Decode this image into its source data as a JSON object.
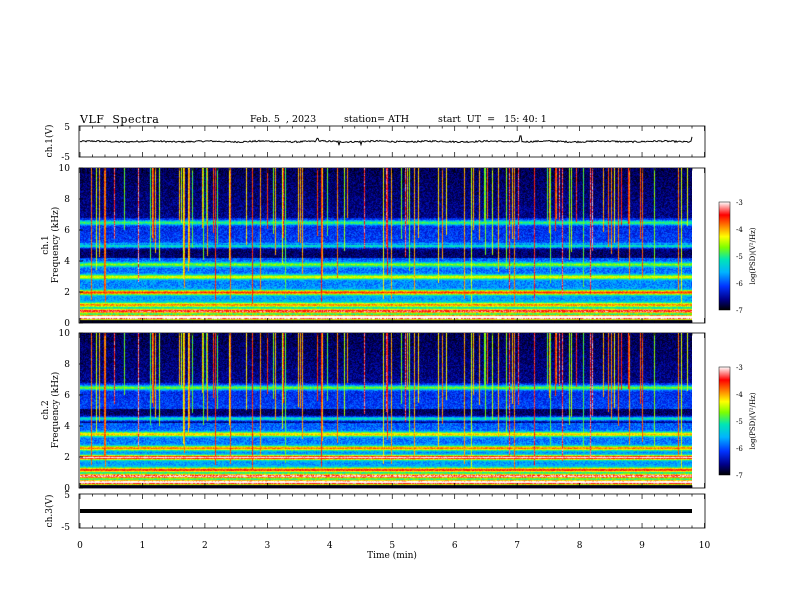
{
  "header": {
    "title": "VLF  Spectra",
    "date": "Feb. 5  , 2023",
    "station": "station= ATH",
    "start": "start  UT  =   15: 40: 1"
  },
  "colors": {
    "spectrum_stops": [
      "#000000",
      "#00008b",
      "#0033ff",
      "#00b4ff",
      "#00e6b4",
      "#7dff00",
      "#ffff00",
      "#ff7f00",
      "#ff0000",
      "#ffffff"
    ]
  },
  "chart_data": [
    {
      "type": "line",
      "id": "ch1_waveform",
      "ylabel": "ch.1(V)",
      "ylim": [
        -5,
        5
      ],
      "yticks": [
        "5",
        "-5"
      ],
      "xlim": [
        0,
        10
      ],
      "baseline": 0,
      "amplitude": 0.5,
      "spikes": [
        {
          "x": 3.8,
          "y": 1.0
        },
        {
          "x": 4.15,
          "y": -1.2
        },
        {
          "x": 4.5,
          "y": -1.0
        },
        {
          "x": 7.05,
          "y": 1.8
        },
        {
          "x": 9.8,
          "y": 1.5
        }
      ]
    },
    {
      "type": "heatmap",
      "id": "ch1_spectrogram",
      "ylabel": "Frequency  (kHz)",
      "channel_label": "ch.1",
      "ylim": [
        0,
        10
      ],
      "yticks": [
        "0",
        "2",
        "4",
        "6",
        "8",
        "10"
      ],
      "xlim": [
        0,
        9.8
      ],
      "colorbar": {
        "label": "log(PSD)(V²/Hz)",
        "range": [
          -7,
          -3
        ],
        "ticks": [
          "-3",
          "-4",
          "-5",
          "-6",
          "-7"
        ]
      },
      "bands": [
        {
          "f": 0.4,
          "level": 0.8
        },
        {
          "f": 0.8,
          "level": 0.6
        },
        {
          "f": 1.2,
          "level": 0.45
        },
        {
          "f": 2.0,
          "level": 0.55
        },
        {
          "f": 3.0,
          "level": 0.38
        },
        {
          "f": 3.8,
          "level": 0.3
        },
        {
          "f": 5.0,
          "level": 0.35
        },
        {
          "f": 6.5,
          "level": 0.3
        }
      ]
    },
    {
      "type": "heatmap",
      "id": "ch2_spectrogram",
      "ylabel": "Frequency  (kHz)",
      "channel_label": "ch.2",
      "ylim": [
        0,
        10
      ],
      "yticks": [
        "0",
        "2",
        "4",
        "6",
        "8",
        "10"
      ],
      "xlim": [
        0,
        9.8
      ],
      "colorbar": {
        "label": "log(PSD)(V²/Hz)",
        "range": [
          -7,
          -3
        ],
        "ticks": [
          "-3",
          "-4",
          "-5",
          "-6",
          "-7"
        ]
      },
      "bands": [
        {
          "f": 0.4,
          "level": 0.75
        },
        {
          "f": 0.8,
          "level": 0.65
        },
        {
          "f": 1.2,
          "level": 0.55
        },
        {
          "f": 2.0,
          "level": 0.7
        },
        {
          "f": 2.6,
          "level": 0.5
        },
        {
          "f": 3.5,
          "level": 0.45
        },
        {
          "f": 4.5,
          "level": 0.35
        },
        {
          "f": 6.5,
          "level": 0.35
        }
      ]
    },
    {
      "type": "line",
      "id": "ch3_waveform",
      "ylabel": "ch.3(V)",
      "ylim": [
        -5,
        5
      ],
      "yticks": [
        "5",
        "-5"
      ],
      "xlim": [
        0,
        9.8
      ],
      "baseline": 0,
      "xlabel": "Time  (min)",
      "xticks": [
        "0",
        "1",
        "2",
        "3",
        "4",
        "5",
        "6",
        "7",
        "8",
        "9",
        "10"
      ]
    }
  ]
}
